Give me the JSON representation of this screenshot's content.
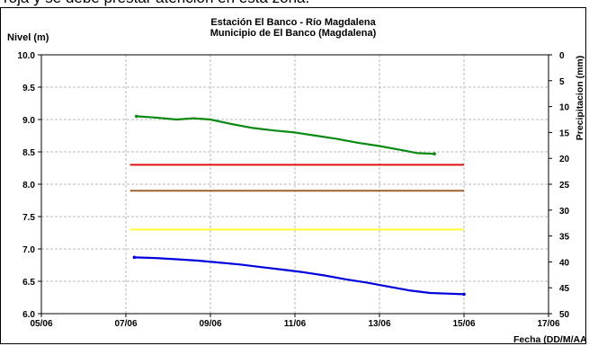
{
  "page": {
    "top_text": "roja y se debe prestar atención en esta zona."
  },
  "chart_data": {
    "type": "line",
    "title": "Estación El Banco - Río Magdalena",
    "subtitle": "Municipio de El Banco (Magdalena)",
    "ylabel": "Nivel (m)",
    "y2label": "Precipitacion (mm)",
    "xlabel": "Fecha (DD/M/AA",
    "x_ticks": [
      "05/06",
      "07/06",
      "09/06",
      "11/06",
      "13/06",
      "15/06",
      "17/06"
    ],
    "y_ticks": [
      "6.0",
      "6.5",
      "7.0",
      "7.5",
      "8.0",
      "8.5",
      "9.0",
      "9.5",
      "10.0"
    ],
    "y2_ticks": [
      "0",
      "5",
      "10",
      "15",
      "20",
      "25",
      "30",
      "35",
      "40",
      "45",
      "50"
    ],
    "xlim": [
      0,
      12
    ],
    "ylim": [
      6.0,
      10.0
    ],
    "y2lim": [
      0,
      50
    ],
    "grid": true,
    "colors": {
      "level_green": "#0a8a12",
      "level_blue": "#0000dd",
      "threshold_red": "#e01010",
      "threshold_brown": "#a0622d",
      "threshold_yellow": "#ffff33",
      "grid": "#b8b8b8"
    },
    "thresholds": [
      {
        "value": 8.3,
        "color": "#e01010",
        "x_start": 2.1,
        "x_end": 10.0
      },
      {
        "value": 7.9,
        "color": "#a0622d",
        "x_start": 2.1,
        "x_end": 10.0
      },
      {
        "value": 7.3,
        "color": "#ffff33",
        "x_start": 2.1,
        "x_end": 10.0
      }
    ],
    "series": [
      {
        "color": "#0a8a12",
        "x": [
          2.25,
          2.7,
          3.2,
          3.6,
          4.0,
          4.5,
          5.0,
          5.5,
          6.0,
          6.5,
          7.0,
          7.5,
          8.0,
          8.5,
          8.9,
          9.3
        ],
        "y": [
          9.05,
          9.03,
          9.0,
          9.02,
          9.0,
          8.93,
          8.87,
          8.83,
          8.8,
          8.75,
          8.7,
          8.64,
          8.59,
          8.53,
          8.48,
          8.47
        ]
      },
      {
        "color": "#0000dd",
        "x": [
          2.2,
          2.7,
          3.2,
          3.7,
          4.2,
          4.7,
          5.2,
          5.7,
          6.2,
          6.7,
          7.2,
          7.7,
          8.2,
          8.7,
          9.2,
          9.6,
          10.0
        ],
        "y": [
          6.87,
          6.86,
          6.84,
          6.82,
          6.79,
          6.76,
          6.72,
          6.68,
          6.64,
          6.59,
          6.53,
          6.48,
          6.42,
          6.36,
          6.32,
          6.31,
          6.3
        ]
      }
    ]
  }
}
